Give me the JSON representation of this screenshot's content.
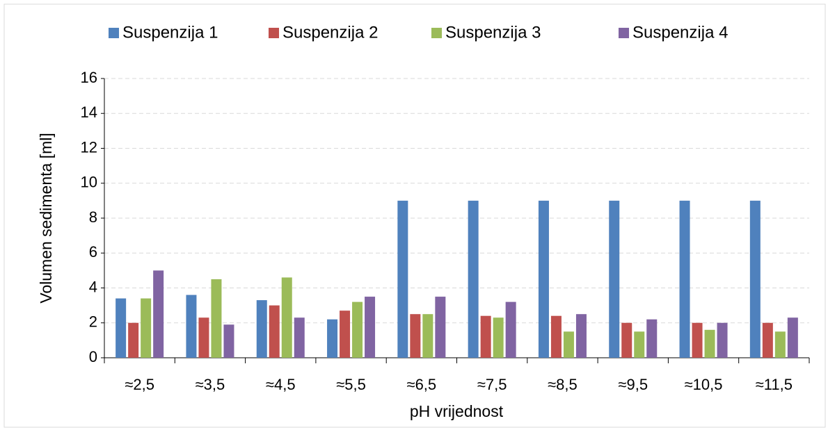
{
  "chart_data": {
    "type": "bar",
    "categories": [
      "≈2,5",
      "≈3,5",
      "≈4,5",
      "≈5,5",
      "≈6,5",
      "≈7,5",
      "≈8,5",
      "≈9,5",
      "≈10,5",
      "≈11,5"
    ],
    "series": [
      {
        "name": "Suspenzija 1",
        "color": "#4f81bd",
        "values": [
          3.4,
          3.6,
          3.3,
          2.2,
          9,
          9,
          9,
          9,
          9,
          9
        ]
      },
      {
        "name": "Suspenzija 2",
        "color": "#c0504d",
        "values": [
          2,
          2.3,
          3,
          2.7,
          2.5,
          2.4,
          2.4,
          2,
          2,
          2
        ]
      },
      {
        "name": "Suspenzija 3",
        "color": "#9bbb59",
        "values": [
          3.4,
          4.5,
          4.6,
          3.2,
          2.5,
          2.3,
          1.5,
          1.5,
          1.6,
          1.5
        ]
      },
      {
        "name": "Suspenzija 4",
        "color": "#8064a2",
        "values": [
          5,
          1.9,
          2.3,
          3.5,
          3.5,
          3.2,
          2.5,
          2.2,
          2,
          2.3
        ]
      }
    ],
    "xlabel": "pH vrijednost",
    "ylabel": "Volumen sedimenta [ml]",
    "ylim": [
      0,
      16
    ],
    "yticks": [
      0,
      2,
      4,
      6,
      8,
      10,
      12,
      14,
      16
    ],
    "grid": true,
    "legend": "top"
  }
}
